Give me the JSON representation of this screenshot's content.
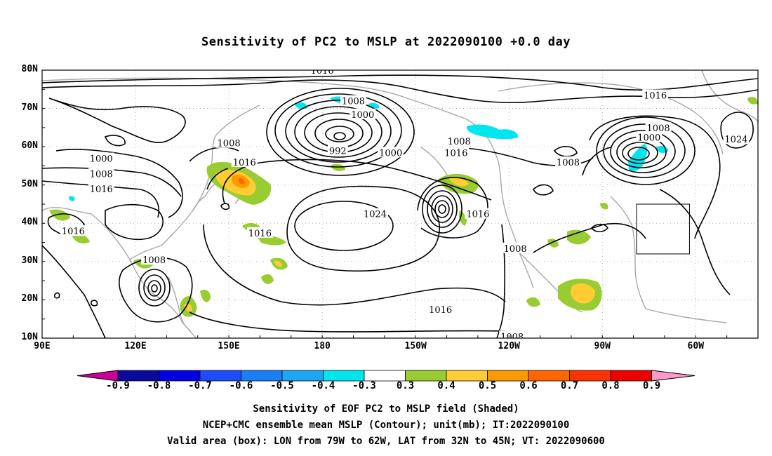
{
  "title": "Sensitivity of PC2 to MSLP at 2022090100 +0.0 day",
  "lat_ticks": [
    "80N",
    "70N",
    "60N",
    "50N",
    "40N",
    "30N",
    "20N",
    "10N"
  ],
  "lon_ticks": [
    "90E",
    "120E",
    "150E",
    "180",
    "150W",
    "120W",
    "90W",
    "60W"
  ],
  "contour_labels": [
    {
      "text": "1016",
      "lon": -180,
      "lat": 80
    },
    {
      "text": "1008",
      "lon": -170,
      "lat": 72
    },
    {
      "text": "1000",
      "lon": -167,
      "lat": 68.5
    },
    {
      "text": "992",
      "lon": -175,
      "lat": 59
    },
    {
      "text": "1000",
      "lon": -158,
      "lat": 58.5
    },
    {
      "text": "1008",
      "lon": -136,
      "lat": 61.5
    },
    {
      "text": "1016",
      "lon": -137,
      "lat": 58.5
    },
    {
      "text": "1008",
      "lon": -101,
      "lat": 56
    },
    {
      "text": "1016",
      "lon": -73,
      "lat": 73.5
    },
    {
      "text": "1008",
      "lon": -72,
      "lat": 65
    },
    {
      "text": "1000",
      "lon": -75,
      "lat": 62.5
    },
    {
      "text": "1024",
      "lon": -47,
      "lat": 62
    },
    {
      "text": "1000",
      "lon": 109,
      "lat": 57
    },
    {
      "text": "1008",
      "lon": 109,
      "lat": 53
    },
    {
      "text": "1016",
      "lon": 109,
      "lat": 49
    },
    {
      "text": "1008",
      "lon": 150,
      "lat": 61
    },
    {
      "text": "1016",
      "lon": 155,
      "lat": 56
    },
    {
      "text": "1024",
      "lon": -163,
      "lat": 42.5
    },
    {
      "text": "1016",
      "lon": -130,
      "lat": 42.5
    },
    {
      "text": "1016",
      "lon": 100,
      "lat": 38
    },
    {
      "text": "1016",
      "lon": 160,
      "lat": 37.5
    },
    {
      "text": "1008",
      "lon": -118,
      "lat": 33.5
    },
    {
      "text": "1008",
      "lon": 126,
      "lat": 30.5
    },
    {
      "text": "1016",
      "lon": -142,
      "lat": 17.5
    },
    {
      "text": "1008",
      "lon": -119,
      "lat": 10.5
    }
  ],
  "valid_box": {
    "lon_west": -79,
    "lon_east": -62,
    "lat_south": 32,
    "lat_north": 45
  },
  "colorbar": {
    "labels": [
      "-0.9",
      "-0.8",
      "-0.7",
      "-0.6",
      "-0.5",
      "-0.4",
      "-0.3",
      "0.3",
      "0.4",
      "0.5",
      "0.6",
      "0.7",
      "0.8",
      "0.9"
    ],
    "colors": [
      "#0a0a9a",
      "#0000e6",
      "#1e4cff",
      "#1a7ef7",
      "#1aa8f5",
      "#00e6ee",
      "#ffffff",
      "#99cc33",
      "#ffcc33",
      "#ff9900",
      "#ff6600",
      "#ff3300",
      "#ee0000"
    ],
    "low_arrow_color": "#cc0099",
    "high_arrow_color": "#ff99cc"
  },
  "caption": {
    "line1": "Sensitivity of EOF PC2 to MSLP field (Shaded)",
    "line2": "NCEP+CMC ensemble mean MSLP (Contour); unit(mb); IT:2022090100",
    "line3": "Valid area (box): LON from 79W to 62W, LAT from 32N to 45N; VT: 2022090600"
  }
}
